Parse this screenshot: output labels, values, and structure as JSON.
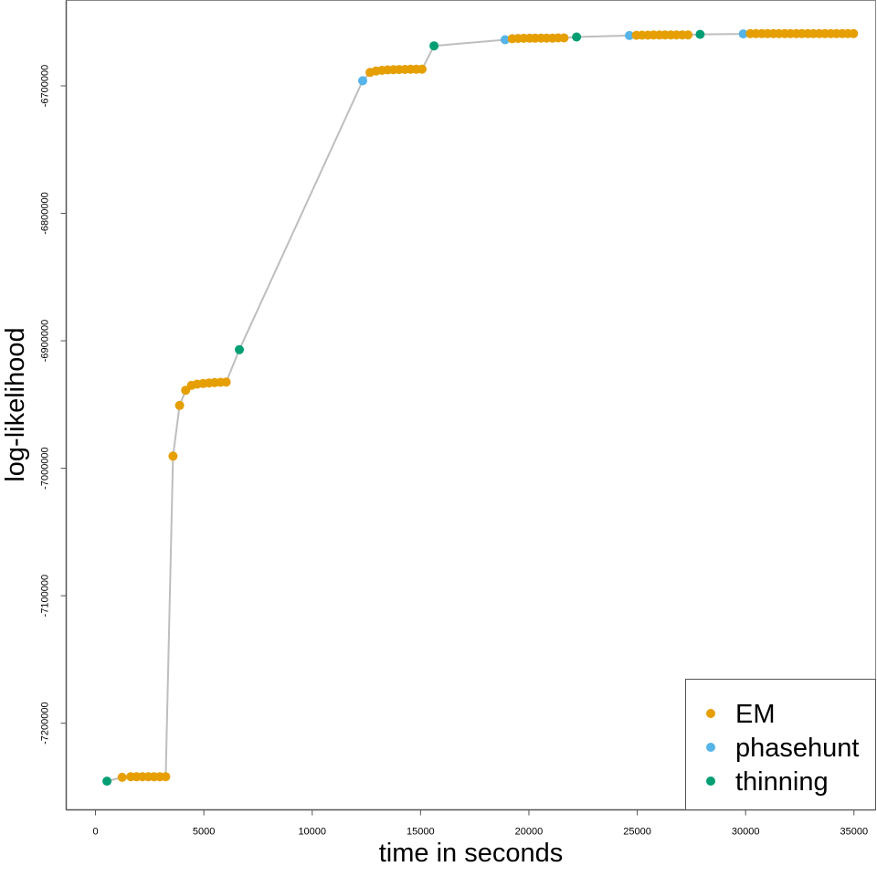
{
  "chart_data": {
    "type": "line",
    "title": "",
    "xlabel": "time in seconds",
    "ylabel": "log-likelihood",
    "xlim": [
      -1350,
      36000
    ],
    "ylim": [
      -7268000,
      -6633000
    ],
    "x_ticks": [
      0,
      5000,
      10000,
      15000,
      20000,
      25000,
      30000,
      35000
    ],
    "x_tick_labels": [
      "0",
      "5000",
      "10000",
      "15000",
      "20000",
      "25000",
      "30000",
      "35000"
    ],
    "y_ticks": [
      -6700000,
      -6800000,
      -6900000,
      -7000000,
      -7100000,
      -7200000
    ],
    "y_tick_labels": [
      "-6700000",
      "-6800000",
      "-6900000",
      "-7000000",
      "-7100000",
      "-7200000"
    ],
    "grid": false,
    "legend_position": "bottom-right",
    "line_color": "#bebebe",
    "legend": [
      {
        "name": "EM",
        "color": "#E69F00"
      },
      {
        "name": "phasehunt",
        "color": "#56B4E9"
      },
      {
        "name": "thinning",
        "color": "#009E73"
      }
    ],
    "points": [
      {
        "x": 530,
        "y": -7245500,
        "method": "thinning"
      },
      {
        "x": 1230,
        "y": -7242500,
        "method": "EM"
      },
      {
        "x": 1630,
        "y": -7242000,
        "method": "EM"
      },
      {
        "x": 1900,
        "y": -7242000,
        "method": "EM"
      },
      {
        "x": 2170,
        "y": -7242000,
        "method": "EM"
      },
      {
        "x": 2440,
        "y": -7242000,
        "method": "EM"
      },
      {
        "x": 2700,
        "y": -7242000,
        "method": "EM"
      },
      {
        "x": 2970,
        "y": -7242000,
        "method": "EM"
      },
      {
        "x": 3240,
        "y": -7242000,
        "method": "EM"
      },
      {
        "x": 3580,
        "y": -6990500,
        "method": "EM"
      },
      {
        "x": 3880,
        "y": -6950700,
        "method": "EM"
      },
      {
        "x": 4160,
        "y": -6938800,
        "method": "EM"
      },
      {
        "x": 4430,
        "y": -6935000,
        "method": "EM"
      },
      {
        "x": 4690,
        "y": -6934000,
        "method": "EM"
      },
      {
        "x": 4970,
        "y": -6933500,
        "method": "EM"
      },
      {
        "x": 5240,
        "y": -6933100,
        "method": "EM"
      },
      {
        "x": 5500,
        "y": -6932800,
        "method": "EM"
      },
      {
        "x": 5770,
        "y": -6932600,
        "method": "EM"
      },
      {
        "x": 6030,
        "y": -6932400,
        "method": "EM"
      },
      {
        "x": 6640,
        "y": -6907000,
        "method": "thinning"
      },
      {
        "x": 12330,
        "y": -6696000,
        "method": "phasehunt"
      },
      {
        "x": 12670,
        "y": -6689500,
        "method": "EM"
      },
      {
        "x": 12950,
        "y": -6688300,
        "method": "EM"
      },
      {
        "x": 13220,
        "y": -6687800,
        "method": "EM"
      },
      {
        "x": 13480,
        "y": -6687500,
        "method": "EM"
      },
      {
        "x": 13750,
        "y": -6687300,
        "method": "EM"
      },
      {
        "x": 14010,
        "y": -6687200,
        "method": "EM"
      },
      {
        "x": 14280,
        "y": -6687100,
        "method": "EM"
      },
      {
        "x": 14540,
        "y": -6687000,
        "method": "EM"
      },
      {
        "x": 14810,
        "y": -6687000,
        "method": "EM"
      },
      {
        "x": 15070,
        "y": -6686900,
        "method": "EM"
      },
      {
        "x": 15620,
        "y": -6668600,
        "method": "thinning"
      },
      {
        "x": 18900,
        "y": -6663800,
        "method": "phasehunt"
      },
      {
        "x": 19230,
        "y": -6663000,
        "method": "EM"
      },
      {
        "x": 19500,
        "y": -6662800,
        "method": "EM"
      },
      {
        "x": 19760,
        "y": -6662700,
        "method": "EM"
      },
      {
        "x": 20030,
        "y": -6662600,
        "method": "EM"
      },
      {
        "x": 20290,
        "y": -6662600,
        "method": "EM"
      },
      {
        "x": 20560,
        "y": -6662500,
        "method": "EM"
      },
      {
        "x": 20820,
        "y": -6662500,
        "method": "EM"
      },
      {
        "x": 21090,
        "y": -6662500,
        "method": "EM"
      },
      {
        "x": 21350,
        "y": -6662400,
        "method": "EM"
      },
      {
        "x": 21620,
        "y": -6662400,
        "method": "EM"
      },
      {
        "x": 22200,
        "y": -6661700,
        "method": "thinning"
      },
      {
        "x": 24640,
        "y": -6660500,
        "method": "phasehunt"
      },
      {
        "x": 24960,
        "y": -6660300,
        "method": "EM"
      },
      {
        "x": 25220,
        "y": -6660200,
        "method": "EM"
      },
      {
        "x": 25490,
        "y": -6660200,
        "method": "EM"
      },
      {
        "x": 25750,
        "y": -6660100,
        "method": "EM"
      },
      {
        "x": 26020,
        "y": -6660100,
        "method": "EM"
      },
      {
        "x": 26280,
        "y": -6660100,
        "method": "EM"
      },
      {
        "x": 26550,
        "y": -6660100,
        "method": "EM"
      },
      {
        "x": 26810,
        "y": -6660000,
        "method": "EM"
      },
      {
        "x": 27080,
        "y": -6660000,
        "method": "EM"
      },
      {
        "x": 27340,
        "y": -6660000,
        "method": "EM"
      },
      {
        "x": 27900,
        "y": -6659600,
        "method": "thinning"
      },
      {
        "x": 29890,
        "y": -6659200,
        "method": "phasehunt"
      },
      {
        "x": 30220,
        "y": -6659000,
        "method": "EM"
      },
      {
        "x": 30480,
        "y": -6659000,
        "method": "EM"
      },
      {
        "x": 30750,
        "y": -6659000,
        "method": "EM"
      },
      {
        "x": 31010,
        "y": -6659000,
        "method": "EM"
      },
      {
        "x": 31280,
        "y": -6659000,
        "method": "EM"
      },
      {
        "x": 31540,
        "y": -6659000,
        "method": "EM"
      },
      {
        "x": 31810,
        "y": -6659000,
        "method": "EM"
      },
      {
        "x": 32070,
        "y": -6659000,
        "method": "EM"
      },
      {
        "x": 32340,
        "y": -6659000,
        "method": "EM"
      },
      {
        "x": 32600,
        "y": -6659000,
        "method": "EM"
      },
      {
        "x": 32870,
        "y": -6659000,
        "method": "EM"
      },
      {
        "x": 33130,
        "y": -6659000,
        "method": "EM"
      },
      {
        "x": 33400,
        "y": -6659000,
        "method": "EM"
      },
      {
        "x": 33660,
        "y": -6659000,
        "method": "EM"
      },
      {
        "x": 33930,
        "y": -6659000,
        "method": "EM"
      },
      {
        "x": 34190,
        "y": -6659000,
        "method": "EM"
      },
      {
        "x": 34460,
        "y": -6659000,
        "method": "EM"
      },
      {
        "x": 34720,
        "y": -6659000,
        "method": "EM"
      },
      {
        "x": 34980,
        "y": -6659000,
        "method": "EM"
      }
    ]
  }
}
